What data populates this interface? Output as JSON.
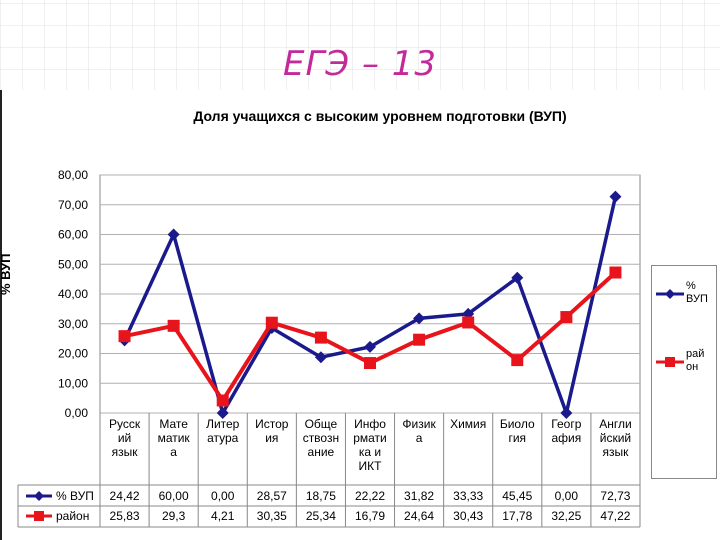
{
  "slide": {
    "title": "ЕГЭ – 13"
  },
  "chart_data": {
    "type": "line",
    "title": "Доля учащихся с высоким уровнем подготовки (ВУП)",
    "ylabel": "% ВУП",
    "xlabel": "",
    "ylim": [
      0,
      80
    ],
    "yticks": [
      "0,00",
      "10,00",
      "20,00",
      "30,00",
      "40,00",
      "50,00",
      "60,00",
      "70,00",
      "80,00"
    ],
    "grid": "horizontal",
    "legend_position": "right",
    "categories": [
      [
        "Русск",
        "ий",
        "язык"
      ],
      [
        "Мате",
        "матик",
        "а"
      ],
      [
        "Литер",
        "атура"
      ],
      [
        "Истор",
        "ия"
      ],
      [
        "Обще",
        "ствозн",
        "ание"
      ],
      [
        "Инфо",
        "рмати",
        "ка и",
        "ИКТ"
      ],
      [
        "Физик",
        "а"
      ],
      [
        "Химия"
      ],
      [
        "Биоло",
        "гия"
      ],
      [
        "Геогр",
        "афия"
      ],
      [
        "Англи",
        "йский",
        "язык"
      ]
    ],
    "series": [
      {
        "name": "% ВУП",
        "legend_lines": [
          "%",
          "ВУП"
        ],
        "color": "#1a1a8c",
        "marker": "diamond",
        "values": [
          24.42,
          60.0,
          0.0,
          28.57,
          18.75,
          22.22,
          31.82,
          33.33,
          45.45,
          0.0,
          72.73
        ],
        "labels": [
          "24,42",
          "60,00",
          "0,00",
          "28,57",
          "18,75",
          "22,22",
          "31,82",
          "33,33",
          "45,45",
          "0,00",
          "72,73"
        ]
      },
      {
        "name": "район",
        "legend_lines": [
          "рай",
          "он"
        ],
        "color": "#e8141c",
        "marker": "square",
        "values": [
          25.83,
          29.3,
          4.21,
          30.35,
          25.34,
          16.79,
          24.64,
          30.43,
          17.78,
          32.25,
          47.22
        ],
        "labels": [
          "25,83",
          "29,3",
          "4,21",
          "30,35",
          "25,34",
          "16,79",
          "24,64",
          "30,43",
          "17,78",
          "32,25",
          "47,22"
        ]
      }
    ]
  }
}
